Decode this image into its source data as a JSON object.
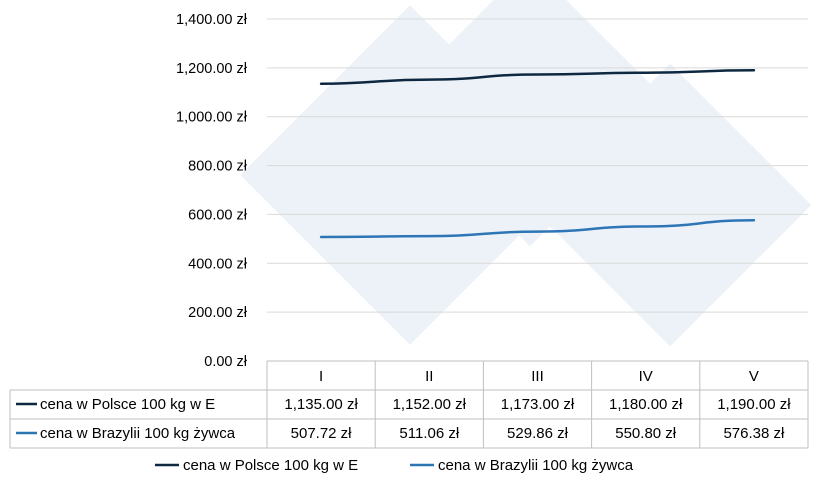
{
  "chart_data": {
    "type": "line",
    "categories": [
      "I",
      "II",
      "III",
      "IV",
      "V"
    ],
    "series": [
      {
        "name": "cena w Polsce 100 kg w E",
        "color": "#0e2841",
        "values": [
          1135.0,
          1152.0,
          1173.0,
          1180.0,
          1190.0
        ],
        "labels": [
          "1,135.00 zł",
          "1,152.00 zł",
          "1,173.00 zł",
          "1,180.00 zł",
          "1,190.00 zł"
        ]
      },
      {
        "name": "cena w Brazylii 100 kg żywca",
        "color": "#2e75b6",
        "values": [
          507.72,
          511.06,
          529.86,
          550.8,
          576.38
        ],
        "labels": [
          "507.72 zł",
          "511.06 zł",
          "529.86 zł",
          "550.80 zł",
          "576.38 zł"
        ]
      }
    ],
    "y_ticks": [
      "0.00 zł",
      "200.00 zł",
      "400.00 zł",
      "600.00 zł",
      "800.00 zł",
      "1,000.00 zł",
      "1,200.00 zł",
      "1,400.00 zł"
    ],
    "ylim": [
      0,
      1400
    ],
    "grid": true,
    "data_table": true,
    "legend": "bottom-center"
  }
}
